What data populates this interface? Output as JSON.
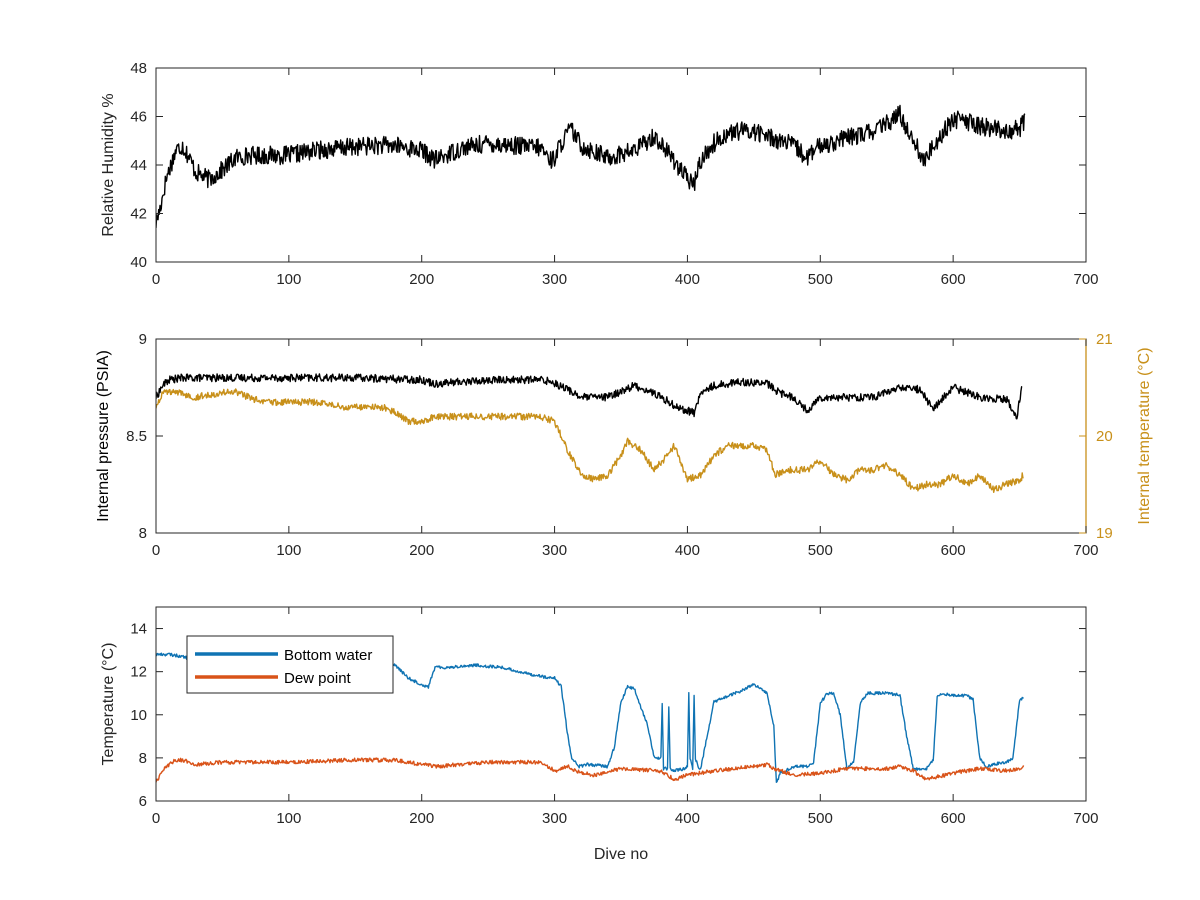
{
  "figure": {
    "background": "#ffffff",
    "axis_color": "#262626",
    "secondary_axis_color": "#c8901a"
  },
  "chart_data": [
    {
      "id": "humidity",
      "type": "line",
      "xlabel": "",
      "ylabel": "Relative Humidity %",
      "xlim": [
        0,
        700
      ],
      "ylim": [
        40,
        48
      ],
      "xticks": [
        0,
        100,
        200,
        300,
        400,
        500,
        600,
        700
      ],
      "yticks": [
        40,
        42,
        44,
        46,
        48
      ],
      "grid": false,
      "series": [
        {
          "color": "#000000",
          "noise": 0.38,
          "x": [
            0,
            3,
            8,
            15,
            20,
            25,
            30,
            40,
            50,
            60,
            70,
            80,
            100,
            120,
            140,
            160,
            180,
            200,
            210,
            230,
            250,
            270,
            290,
            297,
            300,
            305,
            312,
            320,
            340,
            360,
            375,
            390,
            400,
            405,
            410,
            420,
            430,
            440,
            450,
            460,
            470,
            480,
            490,
            500,
            520,
            540,
            550,
            560,
            565,
            570,
            578,
            585,
            600,
            610,
            620,
            630,
            640,
            650,
            654
          ],
          "y": [
            41.6,
            42.2,
            43.5,
            44.6,
            44.8,
            44.3,
            43.7,
            43.4,
            43.8,
            44.3,
            44.4,
            44.4,
            44.4,
            44.6,
            44.7,
            44.8,
            44.8,
            44.6,
            44.2,
            44.7,
            44.9,
            44.8,
            44.7,
            44.2,
            44.3,
            44.9,
            45.5,
            44.8,
            44.3,
            44.6,
            45.2,
            44.2,
            43.4,
            43.2,
            44.2,
            44.9,
            45.3,
            45.4,
            45.4,
            45.2,
            45.0,
            44.8,
            44.3,
            44.8,
            45.1,
            45.4,
            45.7,
            46.1,
            45.5,
            45.1,
            44.1,
            44.8,
            45.9,
            45.8,
            45.6,
            45.5,
            45.4,
            45.5,
            45.9
          ]
        }
      ]
    },
    {
      "id": "pressure-temperature",
      "type": "line",
      "xlabel": "",
      "ylabel": "Internal pressure (PSIA)",
      "ylabel_right": "Internal temperature (°C)",
      "xlim": [
        0,
        700
      ],
      "ylim": [
        8,
        9
      ],
      "ylim_right": [
        19,
        21
      ],
      "xticks": [
        0,
        100,
        200,
        300,
        400,
        500,
        600,
        700
      ],
      "yticks": [
        8,
        8.5,
        9
      ],
      "yticks_right": [
        19,
        20,
        21
      ],
      "yticklabels_right": [
        "19",
        "20",
        "21"
      ],
      "grid": false,
      "series": [
        {
          "color": "#000000",
          "axis": "left",
          "noise": 0.02,
          "x": [
            0,
            5,
            10,
            20,
            50,
            100,
            150,
            200,
            210,
            230,
            260,
            290,
            298,
            310,
            320,
            340,
            360,
            375,
            385,
            395,
            405,
            410,
            420,
            440,
            460,
            470,
            480,
            490,
            500,
            520,
            540,
            560,
            575,
            585,
            600,
            620,
            640,
            648,
            652
          ],
          "y": [
            8.7,
            8.76,
            8.79,
            8.8,
            8.8,
            8.8,
            8.8,
            8.79,
            8.77,
            8.78,
            8.79,
            8.79,
            8.78,
            8.74,
            8.7,
            8.7,
            8.76,
            8.72,
            8.68,
            8.64,
            8.62,
            8.72,
            8.76,
            8.78,
            8.77,
            8.72,
            8.7,
            8.63,
            8.7,
            8.7,
            8.7,
            8.75,
            8.74,
            8.64,
            8.75,
            8.7,
            8.69,
            8.6,
            8.76
          ]
        },
        {
          "color": "#c8901a",
          "axis": "right",
          "noise": 0.035,
          "x": [
            0,
            5,
            15,
            30,
            50,
            60,
            70,
            80,
            100,
            120,
            140,
            150,
            160,
            170,
            180,
            190,
            200,
            210,
            220,
            240,
            260,
            280,
            290,
            300,
            310,
            320,
            330,
            340,
            350,
            355,
            365,
            375,
            385,
            390,
            400,
            410,
            420,
            430,
            440,
            450,
            460,
            466,
            475,
            490,
            500,
            510,
            520,
            530,
            540,
            550,
            560,
            570,
            580,
            590,
            600,
            610,
            620,
            630,
            640,
            650,
            653
          ],
          "y": [
            20.3,
            20.45,
            20.45,
            20.4,
            20.45,
            20.45,
            20.4,
            20.35,
            20.35,
            20.35,
            20.3,
            20.3,
            20.3,
            20.3,
            20.25,
            20.15,
            20.15,
            20.2,
            20.2,
            20.2,
            20.2,
            20.2,
            20.2,
            20.15,
            19.85,
            19.6,
            19.55,
            19.6,
            19.8,
            19.95,
            19.85,
            19.65,
            19.8,
            19.9,
            19.55,
            19.6,
            19.8,
            19.9,
            19.9,
            19.9,
            19.85,
            19.6,
            19.65,
            19.65,
            19.75,
            19.6,
            19.55,
            19.65,
            19.65,
            19.7,
            19.6,
            19.45,
            19.5,
            19.5,
            19.6,
            19.5,
            19.6,
            19.45,
            19.5,
            19.55,
            19.6
          ]
        }
      ]
    },
    {
      "id": "temperature",
      "type": "line",
      "xlabel": "Dive no",
      "ylabel": "Temperature (°C)",
      "xlim": [
        0,
        700
      ],
      "ylim": [
        6,
        15
      ],
      "xticks": [
        0,
        100,
        200,
        300,
        400,
        500,
        600,
        700
      ],
      "yticks": [
        6,
        8,
        10,
        12,
        14
      ],
      "grid": false,
      "legend_position": "top-left",
      "series": [
        {
          "name": "Bottom water",
          "color": "#0f73b3",
          "noise": 0.07,
          "x": [
            0,
            10,
            20,
            30,
            40,
            60,
            80,
            100,
            120,
            140,
            160,
            180,
            190,
            200,
            205,
            210,
            220,
            240,
            260,
            280,
            290,
            295,
            300,
            305,
            310,
            313,
            318,
            325,
            340,
            345,
            350,
            355,
            360,
            370,
            375,
            380,
            381,
            382,
            385,
            386,
            387,
            390,
            398,
            400,
            401,
            402,
            404,
            405,
            406,
            408,
            410,
            420,
            440,
            450,
            460,
            465,
            467,
            470,
            480,
            490,
            495,
            500,
            505,
            510,
            515,
            520,
            525,
            530,
            535,
            540,
            550,
            560,
            565,
            570,
            580,
            585,
            588,
            592,
            600,
            610,
            615,
            620,
            625,
            630,
            640,
            645,
            650,
            653
          ],
          "y": [
            12.8,
            12.8,
            12.7,
            12.5,
            12.6,
            12.6,
            12.5,
            12.6,
            12.5,
            12.7,
            12.6,
            12.3,
            11.7,
            11.4,
            11.3,
            12.2,
            12.2,
            12.3,
            12.2,
            11.9,
            11.8,
            11.7,
            11.7,
            11.3,
            9.0,
            8.0,
            7.6,
            7.7,
            7.6,
            8.5,
            10.6,
            11.3,
            11.2,
            9.5,
            8.0,
            8.0,
            10.5,
            7.5,
            7.5,
            10.4,
            7.5,
            7.4,
            7.5,
            7.6,
            11.0,
            8.0,
            7.5,
            10.9,
            8.0,
            7.6,
            7.5,
            10.6,
            11.1,
            11.4,
            11.0,
            9.5,
            6.8,
            7.3,
            7.6,
            7.6,
            7.8,
            10.5,
            11.0,
            11.0,
            10.0,
            7.5,
            7.8,
            10.5,
            11.0,
            11.0,
            11.0,
            10.9,
            9.0,
            7.5,
            7.5,
            7.9,
            10.9,
            11.0,
            10.9,
            10.9,
            10.7,
            8.0,
            7.6,
            7.7,
            7.8,
            8.0,
            10.7,
            10.8
          ]
        },
        {
          "name": "Dew point",
          "color": "#d95319",
          "noise": 0.09,
          "x": [
            0,
            5,
            10,
            15,
            20,
            30,
            50,
            80,
            100,
            150,
            180,
            200,
            210,
            250,
            290,
            300,
            310,
            320,
            330,
            350,
            380,
            390,
            400,
            420,
            450,
            460,
            465,
            470,
            480,
            500,
            520,
            550,
            560,
            570,
            580,
            600,
            620,
            640,
            650,
            653
          ],
          "y": [
            6.9,
            7.4,
            7.7,
            7.9,
            7.9,
            7.7,
            7.8,
            7.8,
            7.8,
            7.9,
            7.9,
            7.7,
            7.6,
            7.8,
            7.8,
            7.4,
            7.6,
            7.3,
            7.2,
            7.5,
            7.4,
            7.0,
            7.2,
            7.4,
            7.6,
            7.7,
            7.5,
            7.4,
            7.2,
            7.3,
            7.5,
            7.5,
            7.6,
            7.4,
            7.0,
            7.3,
            7.5,
            7.4,
            7.5,
            7.6
          ]
        }
      ]
    }
  ]
}
